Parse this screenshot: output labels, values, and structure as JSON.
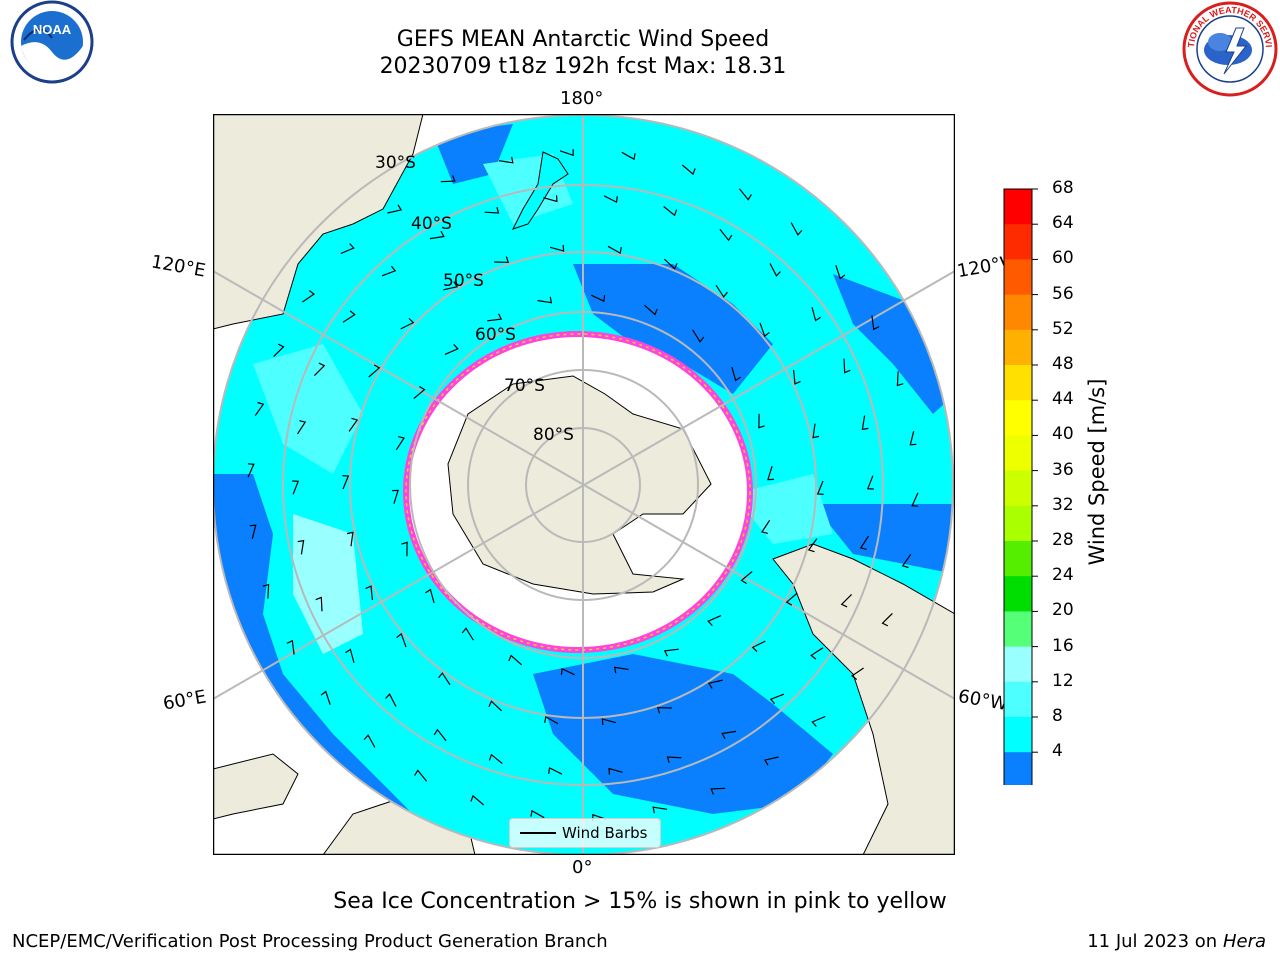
{
  "header": {
    "title_line1": "GEFS MEAN Antarctic Wind Speed",
    "title_line2": "20230709 t18z 192h fcst   Max: 18.31"
  },
  "logos": {
    "noaa_text": "NOAA",
    "noaa_ring_text": "NATIONAL OCEANIC AND ATMOSPHERIC ADMINISTRATION · U.S. DEPARTMENT OF COMMERCE",
    "nws_ring_text": "NATIONAL WEATHER SERVICE"
  },
  "map": {
    "projection": "south-polar-stereographic",
    "longitude_labels": {
      "top": "180°",
      "bottom": "0°",
      "left_upper": "120°E",
      "left_lower": "60°E",
      "right_upper": "120°W",
      "right_lower": "60°W"
    },
    "latitude_labels": [
      "30°S",
      "40°S",
      "50°S",
      "60°S",
      "70°S",
      "80°S"
    ],
    "legend_label": "Wind Barbs",
    "colors": {
      "land": "#ecebdc",
      "ice": "#ffffff",
      "band_4_8": "#0a80ff",
      "band_8_12": "#00ffff",
      "band_12_16": "#4dffff",
      "band_16_20": "#99ffff",
      "ice_edge": "#ff44dd",
      "grid": "#b9b9b9"
    }
  },
  "colorbar": {
    "label": "Wind Speed [m/s]",
    "ticks": [
      "68",
      "64",
      "60",
      "56",
      "52",
      "48",
      "44",
      "40",
      "36",
      "32",
      "28",
      "24",
      "20",
      "16",
      "12",
      "8",
      "4"
    ],
    "colors": [
      "#ff0000",
      "#ff2b00",
      "#ff5a00",
      "#ff8800",
      "#ffb000",
      "#ffe000",
      "#ffff00",
      "#eeff00",
      "#ccff00",
      "#aaff00",
      "#55ee00",
      "#00dd00",
      "#55ff77",
      "#99ffff",
      "#4dffff",
      "#00ffff",
      "#0a80ff"
    ],
    "extend_color": "#0000ff"
  },
  "note": "Sea Ice Concentration > 15% is shown in pink to yellow",
  "footer": {
    "left": "NCEP/EMC/Verification Post Processing Product Generation Branch",
    "right_prefix": "11 Jul 2023 on ",
    "right_host": "Hera"
  }
}
